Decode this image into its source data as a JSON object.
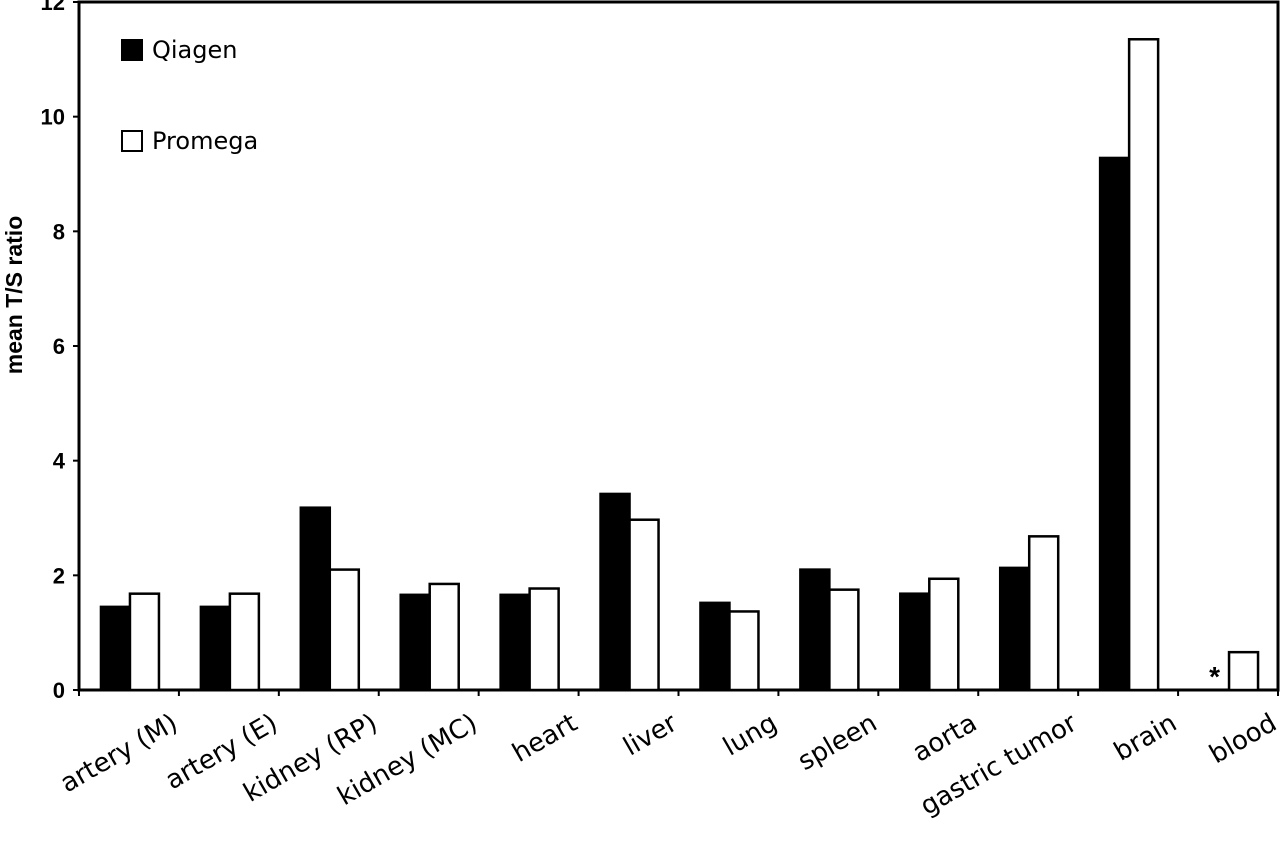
{
  "chart_data": {
    "type": "bar",
    "title": "",
    "xlabel": "",
    "ylabel": "mean T/S ratio",
    "ylim": [
      0,
      12
    ],
    "yticks": [
      "0",
      "2",
      "4",
      "6",
      "8",
      "10",
      "12"
    ],
    "grid": false,
    "legend_position": "top-left",
    "categories": [
      "artery (M)",
      "artery (E)",
      "kidney (RP)",
      "kidney (MC)",
      "heart",
      "liver",
      "lung",
      "spleen",
      "aorta",
      "gastric tumor",
      "brain",
      "blood"
    ],
    "series": [
      {
        "name": "Qiagen",
        "color": "#000000",
        "values": [
          1.45,
          1.45,
          3.18,
          1.66,
          1.66,
          3.42,
          1.52,
          2.1,
          1.68,
          2.13,
          9.28,
          null
        ]
      },
      {
        "name": "Promega",
        "color": "#ffffff",
        "values": [
          1.68,
          1.68,
          2.1,
          1.85,
          1.77,
          2.97,
          1.37,
          1.75,
          1.94,
          2.68,
          11.35,
          0.66
        ]
      }
    ],
    "annotations": [
      {
        "category": "blood",
        "series": "Qiagen",
        "text": "*"
      }
    ]
  }
}
